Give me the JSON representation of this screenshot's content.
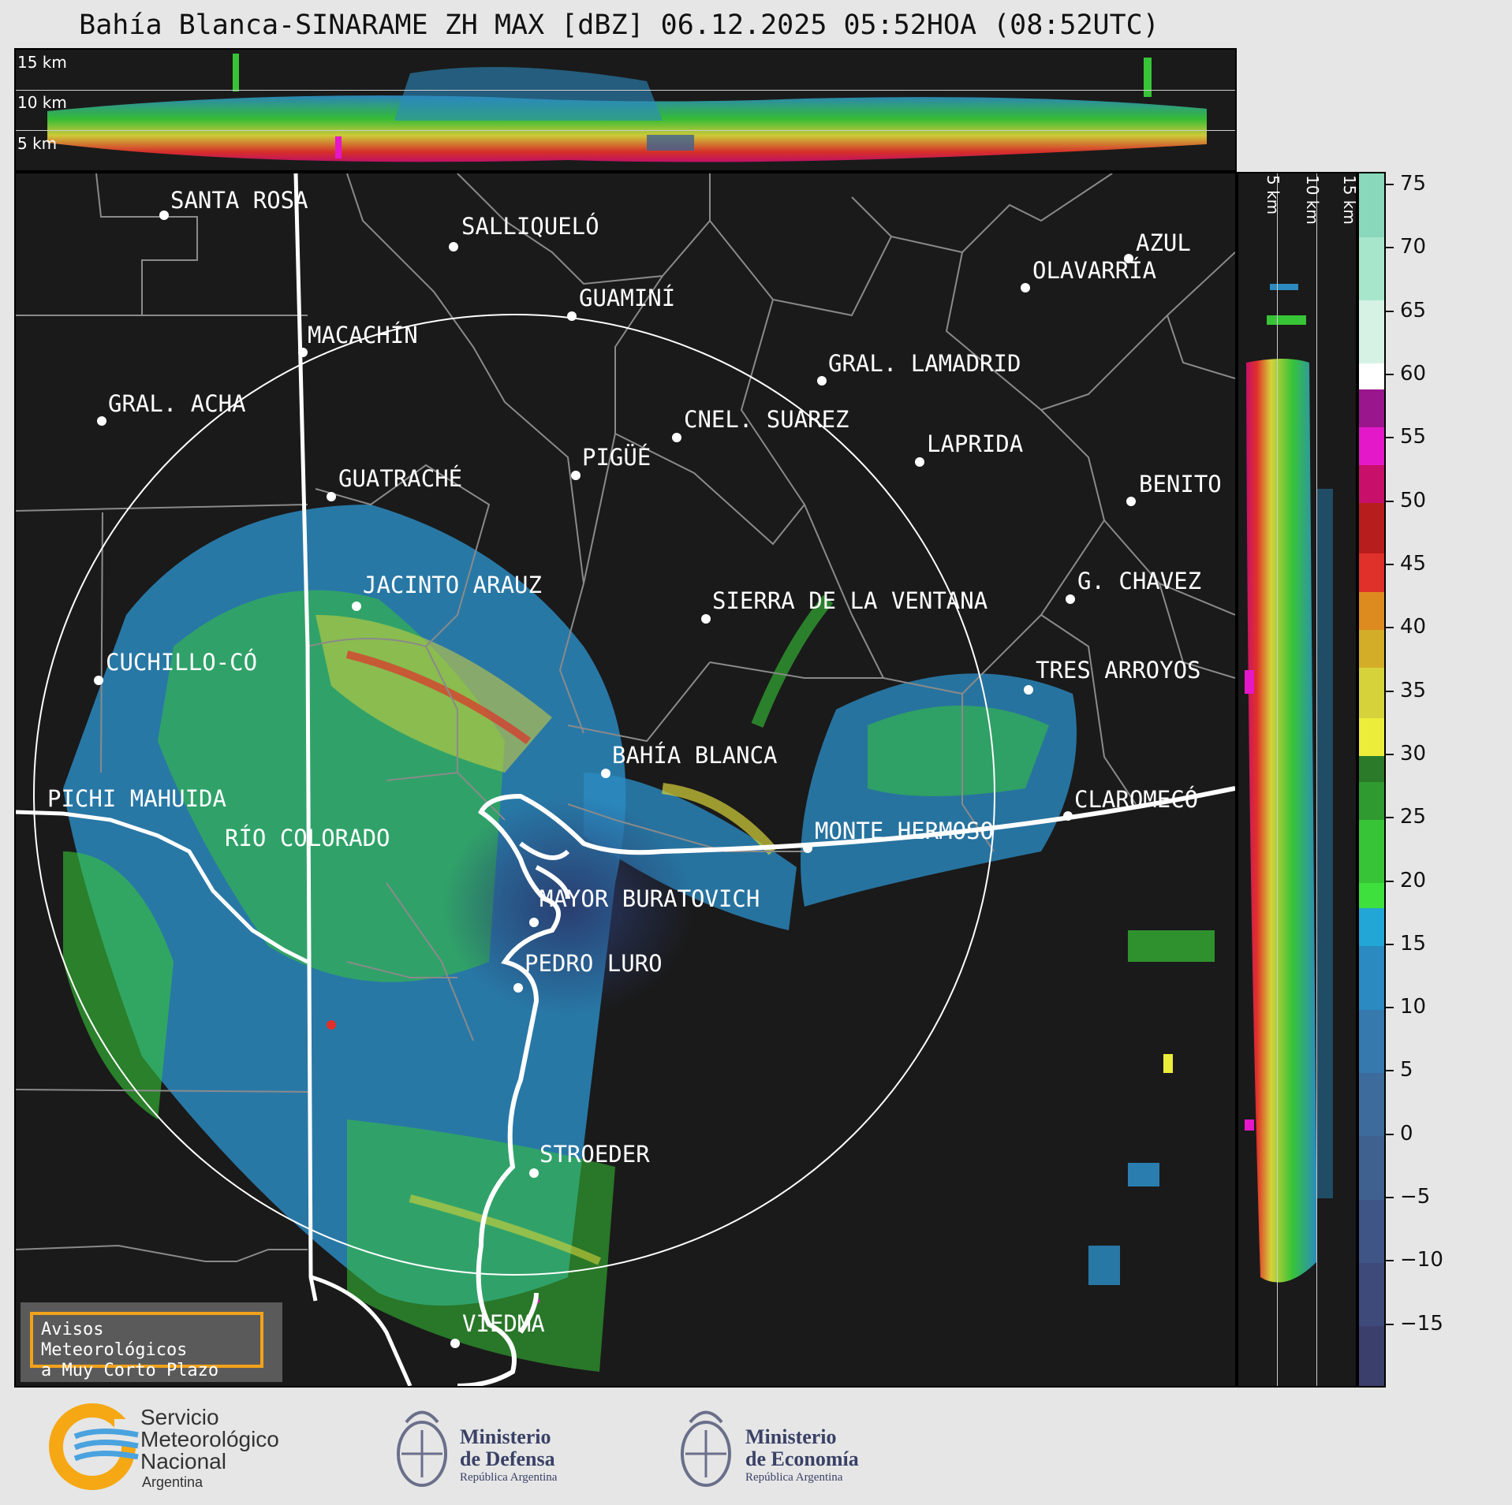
{
  "title": "Bahía Blanca-SINARAME ZH MAX [dBZ] 06.12.2025 05:52HOA (08:52UTC)",
  "top_panel": {
    "altitude_labels": [
      "15 km",
      "10 km",
      "5 km"
    ]
  },
  "side_panel": {
    "altitude_labels": [
      "5 km",
      "10 km",
      "15 km"
    ]
  },
  "map": {
    "cities": [
      {
        "name": "SANTA ROSA"
      },
      {
        "name": "SALLIQUELÓ"
      },
      {
        "name": "AZUL"
      },
      {
        "name": "OLAVARRÍA"
      },
      {
        "name": "GUAMINÍ"
      },
      {
        "name": "MACACHÍN"
      },
      {
        "name": "GRAL. LAMADRID"
      },
      {
        "name": "GRAL. ACHA"
      },
      {
        "name": "CNEL. SUAREZ"
      },
      {
        "name": "LAPRIDA"
      },
      {
        "name": "PIGÜÉ"
      },
      {
        "name": "GUATRACHÉ"
      },
      {
        "name": "BENITO"
      },
      {
        "name": "JACINTO ARAUZ"
      },
      {
        "name": "SIERRA DE LA VENTANA"
      },
      {
        "name": "G. CHAVEZ"
      },
      {
        "name": "CUCHILLO-CÓ"
      },
      {
        "name": "TRES ARROYOS"
      },
      {
        "name": "BAHÍA BLANCA"
      },
      {
        "name": "PICHI MAHUIDA"
      },
      {
        "name": "CLAROMECÓ"
      },
      {
        "name": "RÍO COLORADO"
      },
      {
        "name": "MONTE HERMOSO"
      },
      {
        "name": "MAYOR BURATOVICH"
      },
      {
        "name": "PEDRO LURO"
      },
      {
        "name": "STROEDER"
      },
      {
        "name": "VIEDMA"
      }
    ]
  },
  "colorbar": {
    "unit": "dBZ",
    "tick_labels": [
      "75",
      "70",
      "65",
      "60",
      "55",
      "50",
      "45",
      "40",
      "35",
      "30",
      "25",
      "20",
      "15",
      "10",
      "5",
      "0",
      "−5",
      "−10",
      "−15"
    ],
    "ticks": [
      75,
      70,
      65,
      60,
      55,
      50,
      45,
      40,
      35,
      30,
      25,
      20,
      15,
      10,
      5,
      0,
      -5,
      -10,
      -15
    ],
    "range": [
      -20,
      76
    ],
    "bands": [
      {
        "from": -20,
        "to": -15,
        "color": "#3b3f6b"
      },
      {
        "from": -15,
        "to": -10,
        "color": "#3e4a7a"
      },
      {
        "from": -10,
        "to": -5,
        "color": "#3f5585"
      },
      {
        "from": -5,
        "to": 0,
        "color": "#3f6190"
      },
      {
        "from": 0,
        "to": 5,
        "color": "#3d6c9c"
      },
      {
        "from": 5,
        "to": 10,
        "color": "#3679ad"
      },
      {
        "from": 10,
        "to": 15,
        "color": "#2b8ac0"
      },
      {
        "from": 15,
        "to": 18,
        "color": "#22a6d6"
      },
      {
        "from": 18,
        "to": 20,
        "color": "#3ee03e"
      },
      {
        "from": 20,
        "to": 25,
        "color": "#37c437"
      },
      {
        "from": 25,
        "to": 28,
        "color": "#2f9a2f"
      },
      {
        "from": 28,
        "to": 30,
        "color": "#2a7a2a"
      },
      {
        "from": 30,
        "to": 33,
        "color": "#ecec3a"
      },
      {
        "from": 33,
        "to": 37,
        "color": "#d6d23a"
      },
      {
        "from": 37,
        "to": 40,
        "color": "#d4ad28"
      },
      {
        "from": 40,
        "to": 43,
        "color": "#dd8a1e"
      },
      {
        "from": 43,
        "to": 46,
        "color": "#e0302a"
      },
      {
        "from": 46,
        "to": 50,
        "color": "#b81d1d"
      },
      {
        "from": 50,
        "to": 53,
        "color": "#c8106a"
      },
      {
        "from": 53,
        "to": 56,
        "color": "#e418c8"
      },
      {
        "from": 56,
        "to": 59,
        "color": "#9a168c"
      },
      {
        "from": 59,
        "to": 61,
        "color": "#ffffff"
      },
      {
        "from": 61,
        "to": 66,
        "color": "#d6f2e4"
      },
      {
        "from": 66,
        "to": 71,
        "color": "#a8e6cc"
      },
      {
        "from": 71,
        "to": 76,
        "color": "#8ad8bb"
      }
    ]
  },
  "notice": {
    "line1": "Avisos Meteorológicos",
    "line2": "a Muy Corto Plazo"
  },
  "footer": {
    "smn": {
      "line1": "Servicio",
      "line2": "Meteorológico",
      "line3": "Nacional",
      "line4": "Argentina"
    },
    "defensa": {
      "line1": "Ministerio",
      "line2": "de Defensa",
      "line3": "República Argentina"
    },
    "economia": {
      "line1": "Ministerio",
      "line2": "de Economía",
      "line3": "República Argentina"
    }
  }
}
